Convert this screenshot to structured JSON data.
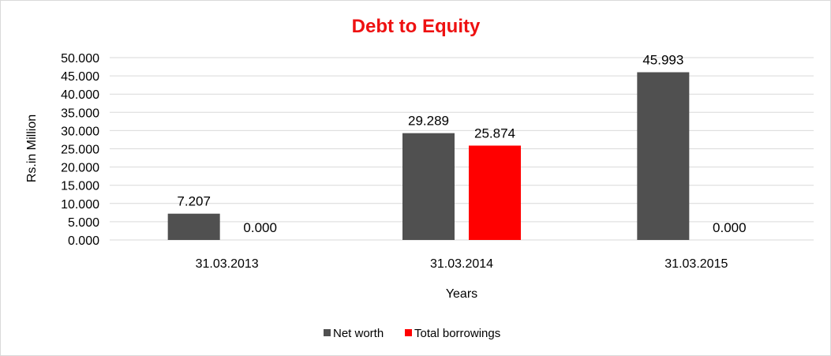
{
  "chart_data": {
    "type": "bar",
    "title": "Debt to Equity",
    "xlabel": "Years",
    "ylabel": "Rs.in Million",
    "categories": [
      "31.03.2013",
      "31.03.2014",
      "31.03.2015"
    ],
    "series": [
      {
        "name": "Net worth",
        "values": [
          7.207,
          29.289,
          45.993
        ],
        "labels": [
          "7.207",
          "29.289",
          "45.993"
        ],
        "color": "#505050"
      },
      {
        "name": "Total borrowings",
        "values": [
          0,
          25.874,
          0
        ],
        "labels": [
          "0.000",
          "25.874",
          "0.000"
        ],
        "color": "#ff0000"
      }
    ],
    "ylim": [
      0,
      50
    ],
    "yticks": [
      0,
      5,
      10,
      15,
      20,
      25,
      30,
      35,
      40,
      45,
      50
    ],
    "ytick_labels": [
      "0.000",
      "5.000",
      "10.000",
      "15.000",
      "20.000",
      "25.000",
      "30.000",
      "35.000",
      "40.000",
      "45.000",
      "50.000"
    ],
    "grid": true,
    "legend_position": "bottom"
  }
}
